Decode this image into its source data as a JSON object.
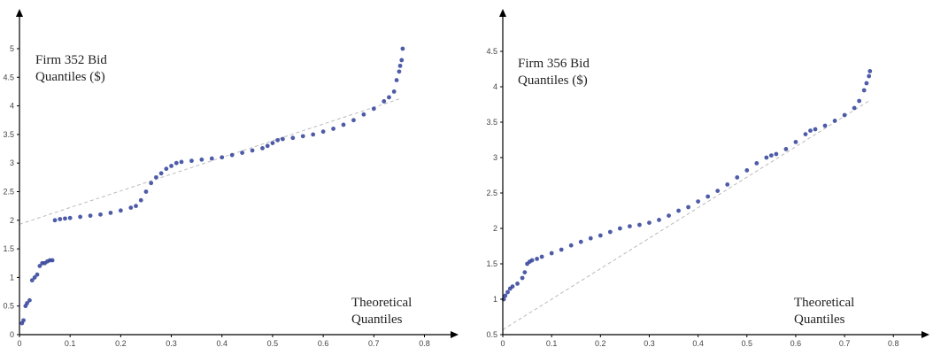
{
  "chart_data": [
    {
      "type": "scatter",
      "annotation_lines": [
        "Firm 352 Bid",
        "Quantiles ($)"
      ],
      "xlabel_lines": [
        "Theoretical",
        "Quantiles"
      ],
      "xlim": [
        0,
        0.8
      ],
      "ylim": [
        0,
        5
      ],
      "xticks": [
        {
          "v": 0,
          "label": "0"
        },
        {
          "v": 0.1,
          "label": "0.1"
        },
        {
          "v": 0.2,
          "label": "0.2"
        },
        {
          "v": 0.3,
          "label": "0.3"
        },
        {
          "v": 0.4,
          "label": "0.4"
        },
        {
          "v": 0.5,
          "label": "0.5"
        },
        {
          "v": 0.6,
          "label": "0.6"
        },
        {
          "v": 0.7,
          "label": "0.7"
        },
        {
          "v": 0.8,
          "label": "0.8"
        }
      ],
      "yticks": [
        {
          "v": 0,
          "label": "0"
        },
        {
          "v": 0.5,
          "label": "0.5"
        },
        {
          "v": 1,
          "label": "1"
        },
        {
          "v": 1.5,
          "label": "1.5"
        },
        {
          "v": 2,
          "label": "2"
        },
        {
          "v": 2.5,
          "label": "2.5"
        },
        {
          "v": 3,
          "label": "3"
        },
        {
          "v": 3.5,
          "label": "3.5"
        },
        {
          "v": 4,
          "label": "4"
        },
        {
          "v": 4.5,
          "label": "4.5"
        },
        {
          "v": 5,
          "label": "5"
        }
      ],
      "reference_line": [
        [
          0,
          1.93
        ],
        [
          0.75,
          4.12
        ]
      ],
      "colors": {
        "points": "#2f3f99",
        "reference": "#bbbbbb",
        "axis": "#000000"
      },
      "series": [
        {
          "points": [
            [
              0.005,
              0.2
            ],
            [
              0.008,
              0.25
            ],
            [
              0.012,
              0.5
            ],
            [
              0.015,
              0.55
            ],
            [
              0.02,
              0.6
            ],
            [
              0.025,
              0.95
            ],
            [
              0.03,
              1.0
            ],
            [
              0.035,
              1.05
            ],
            [
              0.04,
              1.2
            ],
            [
              0.045,
              1.25
            ],
            [
              0.05,
              1.25
            ],
            [
              0.055,
              1.28
            ],
            [
              0.06,
              1.3
            ],
            [
              0.065,
              1.3
            ],
            [
              0.07,
              2.0
            ],
            [
              0.08,
              2.02
            ],
            [
              0.09,
              2.03
            ],
            [
              0.1,
              2.04
            ],
            [
              0.12,
              2.06
            ],
            [
              0.14,
              2.08
            ],
            [
              0.16,
              2.1
            ],
            [
              0.18,
              2.13
            ],
            [
              0.2,
              2.17
            ],
            [
              0.22,
              2.22
            ],
            [
              0.23,
              2.25
            ],
            [
              0.24,
              2.35
            ],
            [
              0.25,
              2.5
            ],
            [
              0.26,
              2.65
            ],
            [
              0.27,
              2.75
            ],
            [
              0.28,
              2.82
            ],
            [
              0.29,
              2.9
            ],
            [
              0.3,
              2.95
            ],
            [
              0.31,
              3.0
            ],
            [
              0.32,
              3.02
            ],
            [
              0.34,
              3.04
            ],
            [
              0.36,
              3.06
            ],
            [
              0.38,
              3.08
            ],
            [
              0.4,
              3.1
            ],
            [
              0.42,
              3.14
            ],
            [
              0.44,
              3.18
            ],
            [
              0.46,
              3.22
            ],
            [
              0.48,
              3.26
            ],
            [
              0.49,
              3.3
            ],
            [
              0.5,
              3.35
            ],
            [
              0.51,
              3.4
            ],
            [
              0.52,
              3.42
            ],
            [
              0.54,
              3.44
            ],
            [
              0.56,
              3.47
            ],
            [
              0.58,
              3.5
            ],
            [
              0.6,
              3.55
            ],
            [
              0.62,
              3.6
            ],
            [
              0.64,
              3.67
            ],
            [
              0.66,
              3.75
            ],
            [
              0.68,
              3.85
            ],
            [
              0.7,
              3.95
            ],
            [
              0.72,
              4.08
            ],
            [
              0.73,
              4.15
            ],
            [
              0.74,
              4.25
            ],
            [
              0.745,
              4.45
            ],
            [
              0.75,
              4.6
            ],
            [
              0.752,
              4.7
            ],
            [
              0.755,
              4.8
            ],
            [
              0.757,
              5.0
            ]
          ]
        }
      ]
    },
    {
      "type": "scatter",
      "annotation_lines": [
        "Firm 356 Bid",
        "Quantiles ($)"
      ],
      "xlabel_lines": [
        "Theoretical",
        "Quantiles"
      ],
      "xlim": [
        0,
        0.8
      ],
      "ylim": [
        0.5,
        4.5
      ],
      "xticks": [
        {
          "v": 0,
          "label": "0"
        },
        {
          "v": 0.1,
          "label": "0.1"
        },
        {
          "v": 0.2,
          "label": "0.2"
        },
        {
          "v": 0.3,
          "label": "0.3"
        },
        {
          "v": 0.4,
          "label": "0.4"
        },
        {
          "v": 0.5,
          "label": "0.5"
        },
        {
          "v": 0.6,
          "label": "0.6"
        },
        {
          "v": 0.7,
          "label": "0.7"
        },
        {
          "v": 0.8,
          "label": "0.8"
        }
      ],
      "yticks": [
        {
          "v": 0.5,
          "label": "0.5"
        },
        {
          "v": 1,
          "label": "1"
        },
        {
          "v": 1.5,
          "label": "1.5"
        },
        {
          "v": 2,
          "label": "2"
        },
        {
          "v": 2.5,
          "label": "2.5"
        },
        {
          "v": 3,
          "label": "3"
        },
        {
          "v": 3.5,
          "label": "3.5"
        },
        {
          "v": 4,
          "label": "4"
        },
        {
          "v": 4.5,
          "label": "4.5"
        }
      ],
      "reference_line": [
        [
          0,
          0.57
        ],
        [
          0.75,
          3.8
        ]
      ],
      "colors": {
        "points": "#2f3f99",
        "reference": "#bbbbbb",
        "axis": "#000000"
      },
      "series": [
        {
          "points": [
            [
              0.002,
              1.0
            ],
            [
              0.005,
              1.05
            ],
            [
              0.01,
              1.1
            ],
            [
              0.015,
              1.15
            ],
            [
              0.02,
              1.18
            ],
            [
              0.03,
              1.22
            ],
            [
              0.04,
              1.3
            ],
            [
              0.045,
              1.38
            ],
            [
              0.05,
              1.5
            ],
            [
              0.055,
              1.53
            ],
            [
              0.06,
              1.55
            ],
            [
              0.07,
              1.57
            ],
            [
              0.08,
              1.6
            ],
            [
              0.1,
              1.65
            ],
            [
              0.12,
              1.7
            ],
            [
              0.14,
              1.76
            ],
            [
              0.16,
              1.81
            ],
            [
              0.18,
              1.86
            ],
            [
              0.2,
              1.9
            ],
            [
              0.22,
              1.95
            ],
            [
              0.24,
              2.0
            ],
            [
              0.26,
              2.03
            ],
            [
              0.28,
              2.05
            ],
            [
              0.3,
              2.08
            ],
            [
              0.32,
              2.12
            ],
            [
              0.34,
              2.18
            ],
            [
              0.36,
              2.25
            ],
            [
              0.38,
              2.3
            ],
            [
              0.4,
              2.38
            ],
            [
              0.42,
              2.45
            ],
            [
              0.44,
              2.53
            ],
            [
              0.46,
              2.62
            ],
            [
              0.48,
              2.72
            ],
            [
              0.5,
              2.82
            ],
            [
              0.52,
              2.92
            ],
            [
              0.54,
              3.0
            ],
            [
              0.55,
              3.03
            ],
            [
              0.56,
              3.05
            ],
            [
              0.58,
              3.12
            ],
            [
              0.6,
              3.22
            ],
            [
              0.62,
              3.33
            ],
            [
              0.63,
              3.38
            ],
            [
              0.64,
              3.4
            ],
            [
              0.66,
              3.45
            ],
            [
              0.68,
              3.52
            ],
            [
              0.7,
              3.6
            ],
            [
              0.72,
              3.7
            ],
            [
              0.73,
              3.8
            ],
            [
              0.74,
              3.95
            ],
            [
              0.745,
              4.05
            ],
            [
              0.75,
              4.15
            ],
            [
              0.752,
              4.22
            ]
          ]
        }
      ]
    }
  ]
}
